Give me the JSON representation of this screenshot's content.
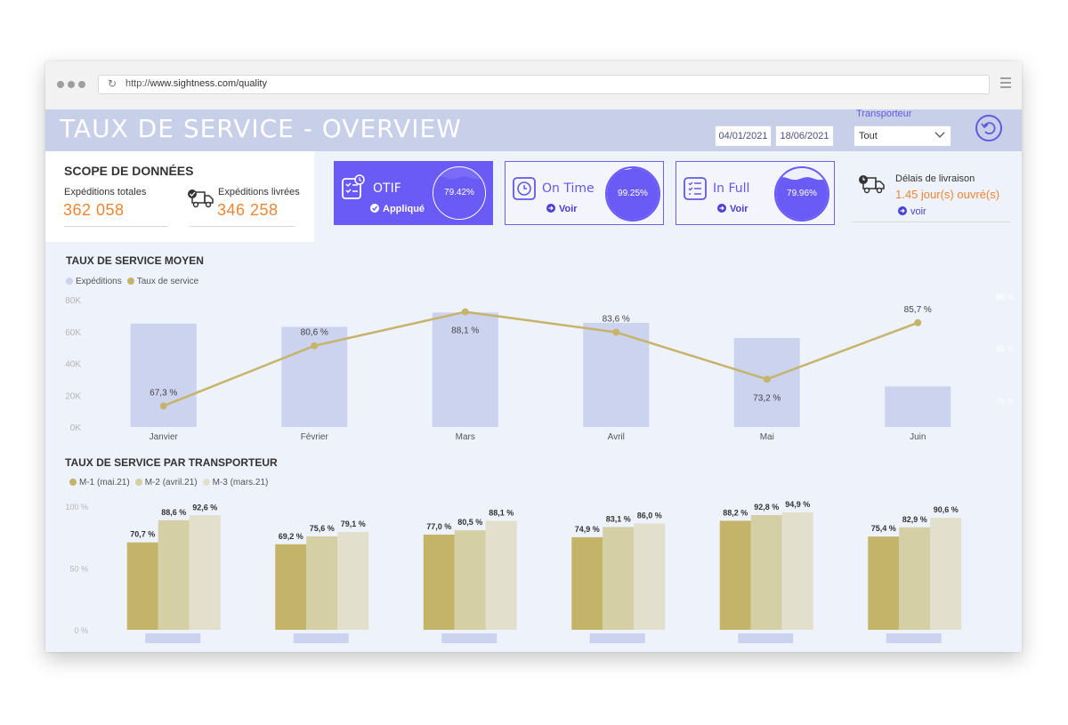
{
  "browser": {
    "url_prefix": "http://",
    "url_host": "www.sightness.com/quality"
  },
  "header": {
    "title": "TAUX DE SERVICE - OVERVIEW",
    "date_start": "04/01/2021",
    "date_end": "18/06/2021",
    "transporteur_label": "Transporteur",
    "transporteur_value": "Tout"
  },
  "scope": {
    "title": "SCOPE DE DONNÉES",
    "total_label": "Expéditions totales",
    "total_value": "362 058",
    "delivered_label": "Expéditions livrées",
    "delivered_value": "346 258"
  },
  "cards": {
    "otif": {
      "title": "OTIF",
      "link": "Appliqué",
      "value": "79.42%",
      "fill": 0.7942
    },
    "ontime": {
      "title": "On Time",
      "link": "Voir",
      "value": "99.25%",
      "fill": 0.9925
    },
    "infull": {
      "title": "In Full",
      "link": "Voir",
      "value": "79.96%",
      "fill": 0.7996
    }
  },
  "delivery": {
    "label": "Délais de livraison",
    "value": "1.45 jour(s) ouvré(s)",
    "link": "voir"
  },
  "colors": {
    "accent": "#6b5bf6",
    "orange": "#f28433",
    "bar": "#ccd3ee",
    "line": "#c6b46c",
    "m1": "#c3b46a",
    "m2": "#d4cfa4",
    "m3": "#e2e0cd"
  },
  "chart_data": [
    {
      "type": "bar",
      "title": "TAUX DE SERVICE MOYEN",
      "categories": [
        "Janvier",
        "Février",
        "Mars",
        "Avril",
        "Mai",
        "Juin"
      ],
      "series": [
        {
          "name": "Expéditions",
          "type": "bar",
          "values": [
            65000,
            63000,
            72000,
            65500,
            56000,
            25500
          ]
        },
        {
          "name": "Taux de service",
          "type": "line",
          "values": [
            67.3,
            80.6,
            88.1,
            83.6,
            73.2,
            85.7
          ],
          "labels": [
            "67,3 %",
            "80,6 %",
            "88,1 %",
            "83,6 %",
            "73,2 %",
            "85,7 %"
          ]
        }
      ],
      "yticks": [
        "0K",
        "20K",
        "40K",
        "60K",
        "80K"
      ],
      "ylim": [
        0,
        80000
      ],
      "y2ticks": [
        "75 %",
        "80 %",
        "85 %",
        "90 %"
      ],
      "legend_position": "top-left"
    },
    {
      "type": "bar",
      "title": "TAUX DE SERVICE PAR TRANSPORTEUR",
      "categories": [
        "",
        "",
        "",
        "",
        "",
        ""
      ],
      "series": [
        {
          "name": "M-1 (mai.21)",
          "values": [
            70.7,
            69.2,
            77.0,
            74.9,
            88.2,
            75.4
          ],
          "labels": [
            "70,7 %",
            "69,2 %",
            "77,0 %",
            "74,9 %",
            "88,2 %",
            "75,4 %"
          ]
        },
        {
          "name": "M-2 (avril.21)",
          "values": [
            88.6,
            75.6,
            80.5,
            83.1,
            92.8,
            82.9
          ],
          "labels": [
            "88,6 %",
            "75,6 %",
            "80,5 %",
            "83,1 %",
            "92,8 %",
            "82,9 %"
          ]
        },
        {
          "name": "M-3 (mars.21)",
          "values": [
            92.6,
            79.1,
            88.1,
            86.0,
            94.9,
            90.6
          ],
          "labels": [
            "92,6 %",
            "79,1 %",
            "88,1 %",
            "86,0 %",
            "94,9 %",
            "90,6 %"
          ]
        }
      ],
      "yticks": [
        "0 %",
        "50 %",
        "100 %"
      ],
      "ylim": [
        0,
        100
      ],
      "legend_position": "top-left"
    }
  ]
}
